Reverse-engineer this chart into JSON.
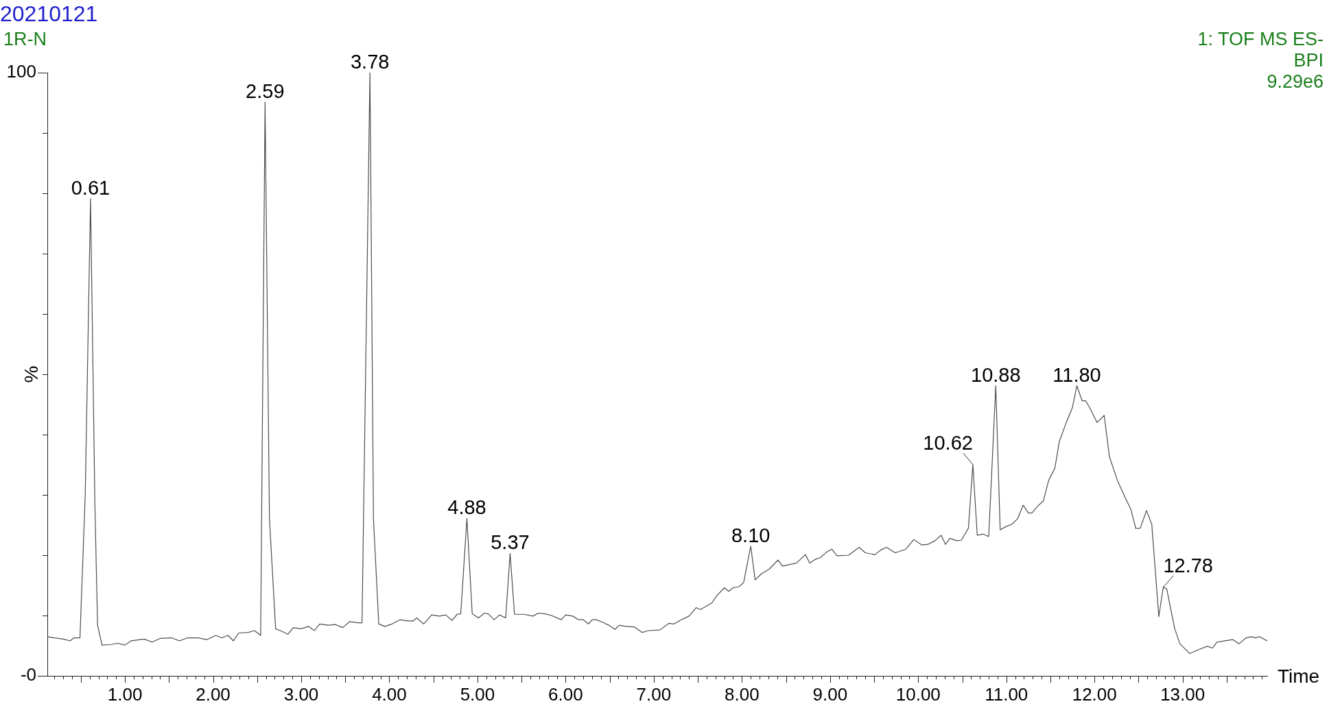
{
  "chart_data": {
    "type": "line",
    "title": "20210121",
    "subtitle": "1R-N",
    "xlabel": "Time",
    "ylabel": "%",
    "annotations": [
      "1: TOF MS ES-",
      "BPI",
      "9.29e6",
      {
        "text": "0.61",
        "x": 0.61,
        "y": 79.1
      },
      {
        "text": "2.59",
        "x": 2.59,
        "y": 95.1
      },
      {
        "text": "3.78",
        "x": 3.78,
        "y": 100
      },
      {
        "text": "4.88",
        "x": 4.88,
        "y": 26.1
      },
      {
        "text": "5.37",
        "x": 5.37,
        "y": 20.3
      },
      {
        "text": "8.10",
        "x": 8.1,
        "y": 21.5
      },
      {
        "text": "10.62",
        "x": 10.62,
        "y": 35.0
      },
      {
        "text": "10.88",
        "x": 10.88,
        "y": 48.1
      },
      {
        "text": "11.80",
        "x": 11.8,
        "y": 48.1
      },
      {
        "text": "12.78",
        "x": 12.78,
        "y": 14.7
      }
    ],
    "x": [
      0.12,
      0.2,
      0.3,
      0.38,
      0.42,
      0.49,
      0.55,
      0.61,
      0.66,
      0.69,
      0.74,
      0.84,
      0.92,
      1.0,
      1.07,
      1.22,
      1.31,
      1.4,
      1.53,
      1.62,
      1.71,
      1.83,
      1.93,
      2.03,
      2.1,
      2.17,
      2.23,
      2.29,
      2.4,
      2.47,
      2.54,
      2.59,
      2.64,
      2.71,
      2.76,
      2.85,
      2.91,
      3.0,
      3.08,
      3.15,
      3.21,
      3.31,
      3.39,
      3.47,
      3.55,
      3.65,
      3.69,
      3.78,
      3.82,
      3.88,
      3.95,
      4.03,
      4.12,
      4.21,
      4.27,
      4.31,
      4.39,
      4.48,
      4.57,
      4.64,
      4.71,
      4.77,
      4.81,
      4.88,
      4.94,
      5.01,
      5.08,
      5.12,
      5.19,
      5.25,
      5.32,
      5.37,
      5.42,
      5.53,
      5.63,
      5.69,
      5.76,
      5.84,
      5.95,
      6.0,
      6.08,
      6.15,
      6.2,
      6.26,
      6.3,
      6.35,
      6.43,
      6.49,
      6.56,
      6.61,
      6.68,
      6.78,
      6.87,
      6.94,
      7.07,
      7.17,
      7.23,
      7.3,
      7.4,
      7.48,
      7.53,
      7.66,
      7.71,
      7.8,
      7.85,
      7.9,
      7.97,
      8.02,
      8.1,
      8.15,
      8.22,
      8.31,
      8.41,
      8.46,
      8.62,
      8.72,
      8.77,
      8.83,
      8.89,
      8.96,
      9.02,
      9.08,
      9.21,
      9.33,
      9.4,
      9.51,
      9.58,
      9.64,
      9.74,
      9.86,
      9.95,
      10.04,
      10.11,
      10.19,
      10.26,
      10.31,
      10.36,
      10.44,
      10.49,
      10.57,
      10.62,
      10.67,
      10.74,
      10.8,
      10.88,
      10.93,
      10.99,
      11.07,
      11.13,
      11.19,
      11.25,
      11.29,
      11.36,
      11.42,
      11.48,
      11.55,
      11.6,
      11.68,
      11.75,
      11.8,
      11.86,
      11.9,
      11.94,
      12.03,
      12.11,
      12.17,
      12.26,
      12.35,
      12.41,
      12.47,
      12.52,
      12.59,
      12.65,
      12.73,
      12.78,
      12.82,
      12.91,
      12.97,
      13.08,
      13.19,
      13.28,
      13.34,
      13.39,
      13.48,
      13.57,
      13.64,
      13.72,
      13.78,
      13.83,
      13.87,
      13.96
    ],
    "values": [
      6.5,
      6.3,
      6.1,
      5.8,
      6.3,
      6.3,
      30,
      79.1,
      28,
      8.4,
      5.1,
      5.2,
      5.4,
      5.1,
      5.8,
      6.1,
      5.6,
      6.2,
      6.3,
      5.8,
      6.3,
      6.3,
      6.0,
      6.7,
      6.3,
      6.7,
      5.8,
      7.1,
      7.2,
      7.5,
      6.7,
      95.1,
      26,
      7.8,
      7.5,
      6.9,
      8.0,
      7.8,
      8.2,
      7.5,
      8.6,
      8.4,
      8.5,
      8.0,
      9.0,
      8.8,
      8.8,
      100,
      26,
      8.6,
      8.2,
      8.6,
      9.3,
      9.1,
      9.1,
      9.6,
      8.6,
      10.1,
      9.9,
      10.1,
      9.2,
      10.2,
      10.3,
      26.1,
      10.3,
      9.6,
      10.4,
      10.3,
      9.3,
      10.1,
      9.6,
      20.3,
      10.2,
      10.2,
      9.9,
      10.4,
      10.3,
      10.0,
      9.3,
      10.1,
      9.9,
      9.3,
      9.3,
      8.6,
      9.3,
      9.3,
      8.8,
      8.4,
      7.7,
      8.4,
      8.2,
      8.1,
      7.2,
      7.5,
      7.6,
      8.7,
      8.6,
      9.2,
      9.9,
      11.3,
      11.0,
      12.1,
      13.2,
      14.6,
      14.0,
      14.6,
      14.8,
      15.5,
      21.5,
      15.9,
      16.9,
      17.7,
      19.2,
      18.2,
      18.7,
      20.1,
      18.7,
      19.3,
      19.6,
      20.5,
      21.0,
      19.9,
      20.0,
      21.3,
      20.4,
      20.1,
      20.9,
      21.3,
      20.4,
      21.0,
      22.6,
      21.7,
      21.8,
      22.4,
      23.3,
      21.8,
      22.8,
      22.4,
      22.5,
      24.5,
      35.0,
      23.3,
      23.5,
      23.1,
      48.1,
      24.2,
      24.7,
      25.2,
      26.1,
      28.3,
      27.0,
      27.0,
      28.2,
      29.0,
      32.4,
      34.4,
      38.8,
      42.0,
      44.5,
      48.1,
      45.6,
      45.6,
      44.6,
      42.0,
      43.2,
      36.3,
      32.4,
      29.5,
      27.7,
      24.4,
      24.5,
      27.4,
      25.1,
      9.8,
      14.7,
      14.4,
      7.8,
      5.3,
      3.7,
      4.4,
      4.9,
      4.6,
      5.6,
      5.8,
      6.0,
      5.3,
      6.3,
      6.5,
      6.3,
      6.5,
      5.8
    ],
    "color": "#4d4d4d",
    "marker": "none",
    "line_style": "solid",
    "xlim": [
      0.12,
      13.96
    ],
    "ylim": [
      0,
      100
    ],
    "xticks": [
      {
        "value": 0.2,
        "label": null
      },
      {
        "value": 0.3,
        "label": null
      },
      {
        "value": 0.4,
        "label": null
      },
      {
        "value": 0.5,
        "label": null
      },
      {
        "value": 0.6,
        "label": null
      },
      {
        "value": 0.7,
        "label": null
      },
      {
        "value": 0.8,
        "label": null
      },
      {
        "value": 0.9,
        "label": null
      },
      {
        "value": 1,
        "label": "1.00"
      },
      {
        "value": 1.1,
        "label": null
      },
      {
        "value": 1.2,
        "label": null
      },
      {
        "value": 1.3,
        "label": null
      },
      {
        "value": 1.4,
        "label": null
      },
      {
        "value": 1.5,
        "label": null
      },
      {
        "value": 1.6,
        "label": null
      },
      {
        "value": 1.7,
        "label": null
      },
      {
        "value": 1.8,
        "label": null
      },
      {
        "value": 1.9,
        "label": null
      },
      {
        "value": 2,
        "label": "2.00"
      },
      {
        "value": 2.1,
        "label": null
      },
      {
        "value": 2.2,
        "label": null
      },
      {
        "value": 2.3,
        "label": null
      },
      {
        "value": 2.4,
        "label": null
      },
      {
        "value": 2.5,
        "label": null
      },
      {
        "value": 2.6,
        "label": null
      },
      {
        "value": 2.7,
        "label": null
      },
      {
        "value": 2.8,
        "label": null
      },
      {
        "value": 2.9,
        "label": null
      },
      {
        "value": 3,
        "label": "3.00"
      },
      {
        "value": 3.1,
        "label": null
      },
      {
        "value": 3.2,
        "label": null
      },
      {
        "value": 3.3,
        "label": null
      },
      {
        "value": 3.4,
        "label": null
      },
      {
        "value": 3.5,
        "label": null
      },
      {
        "value": 3.6,
        "label": null
      },
      {
        "value": 3.7,
        "label": null
      },
      {
        "value": 3.8,
        "label": null
      },
      {
        "value": 3.9,
        "label": null
      },
      {
        "value": 4,
        "label": "4.00"
      },
      {
        "value": 4.1,
        "label": null
      },
      {
        "value": 4.2,
        "label": null
      },
      {
        "value": 4.3,
        "label": null
      },
      {
        "value": 4.4,
        "label": null
      },
      {
        "value": 4.5,
        "label": null
      },
      {
        "value": 4.6,
        "label": null
      },
      {
        "value": 4.7,
        "label": null
      },
      {
        "value": 4.8,
        "label": null
      },
      {
        "value": 4.9,
        "label": null
      },
      {
        "value": 5,
        "label": "5.00"
      },
      {
        "value": 5.1,
        "label": null
      },
      {
        "value": 5.2,
        "label": null
      },
      {
        "value": 5.3,
        "label": null
      },
      {
        "value": 5.4,
        "label": null
      },
      {
        "value": 5.5,
        "label": null
      },
      {
        "value": 5.6,
        "label": null
      },
      {
        "value": 5.7,
        "label": null
      },
      {
        "value": 5.8,
        "label": null
      },
      {
        "value": 5.9,
        "label": null
      },
      {
        "value": 6,
        "label": "6.00"
      },
      {
        "value": 6.1,
        "label": null
      },
      {
        "value": 6.2,
        "label": null
      },
      {
        "value": 6.3,
        "label": null
      },
      {
        "value": 6.4,
        "label": null
      },
      {
        "value": 6.5,
        "label": null
      },
      {
        "value": 6.6,
        "label": null
      },
      {
        "value": 6.7,
        "label": null
      },
      {
        "value": 6.8,
        "label": null
      },
      {
        "value": 6.9,
        "label": null
      },
      {
        "value": 7,
        "label": "7.00"
      },
      {
        "value": 7.1,
        "label": null
      },
      {
        "value": 7.2,
        "label": null
      },
      {
        "value": 7.3,
        "label": null
      },
      {
        "value": 7.4,
        "label": null
      },
      {
        "value": 7.5,
        "label": null
      },
      {
        "value": 7.6,
        "label": null
      },
      {
        "value": 7.7,
        "label": null
      },
      {
        "value": 7.8,
        "label": null
      },
      {
        "value": 7.9,
        "label": null
      },
      {
        "value": 8,
        "label": "8.00"
      },
      {
        "value": 8.1,
        "label": null
      },
      {
        "value": 8.2,
        "label": null
      },
      {
        "value": 8.3,
        "label": null
      },
      {
        "value": 8.4,
        "label": null
      },
      {
        "value": 8.5,
        "label": null
      },
      {
        "value": 8.6,
        "label": null
      },
      {
        "value": 8.7,
        "label": null
      },
      {
        "value": 8.8,
        "label": null
      },
      {
        "value": 8.9,
        "label": null
      },
      {
        "value": 9,
        "label": "9.00"
      },
      {
        "value": 9.1,
        "label": null
      },
      {
        "value": 9.2,
        "label": null
      },
      {
        "value": 9.3,
        "label": null
      },
      {
        "value": 9.4,
        "label": null
      },
      {
        "value": 9.5,
        "label": null
      },
      {
        "value": 9.6,
        "label": null
      },
      {
        "value": 9.7,
        "label": null
      },
      {
        "value": 9.8,
        "label": null
      },
      {
        "value": 9.9,
        "label": null
      },
      {
        "value": 10,
        "label": "10.00"
      },
      {
        "value": 10.1,
        "label": null
      },
      {
        "value": 10.2,
        "label": null
      },
      {
        "value": 10.3,
        "label": null
      },
      {
        "value": 10.4,
        "label": null
      },
      {
        "value": 10.5,
        "label": null
      },
      {
        "value": 10.6,
        "label": null
      },
      {
        "value": 10.7,
        "label": null
      },
      {
        "value": 10.8,
        "label": null
      },
      {
        "value": 10.9,
        "label": null
      },
      {
        "value": 11,
        "label": "11.00"
      },
      {
        "value": 11.1,
        "label": null
      },
      {
        "value": 11.2,
        "label": null
      },
      {
        "value": 11.3,
        "label": null
      },
      {
        "value": 11.4,
        "label": null
      },
      {
        "value": 11.5,
        "label": null
      },
      {
        "value": 11.6,
        "label": null
      },
      {
        "value": 11.7,
        "label": null
      },
      {
        "value": 11.8,
        "label": null
      },
      {
        "value": 11.9,
        "label": null
      },
      {
        "value": 12,
        "label": "12.00"
      },
      {
        "value": 12.1,
        "label": null
      },
      {
        "value": 12.2,
        "label": null
      },
      {
        "value": 12.3,
        "label": null
      },
      {
        "value": 12.4,
        "label": null
      },
      {
        "value": 12.5,
        "label": null
      },
      {
        "value": 12.6,
        "label": null
      },
      {
        "value": 12.7,
        "label": null
      },
      {
        "value": 12.8,
        "label": null
      },
      {
        "value": 12.9,
        "label": null
      },
      {
        "value": 13,
        "label": "13.00"
      },
      {
        "value": 13.1,
        "label": null
      },
      {
        "value": 13.2,
        "label": null
      },
      {
        "value": 13.3,
        "label": null
      },
      {
        "value": 13.4,
        "label": null
      },
      {
        "value": 13.5,
        "label": null
      },
      {
        "value": 13.6,
        "label": null
      },
      {
        "value": 13.7,
        "label": null
      },
      {
        "value": 13.8,
        "label": null
      },
      {
        "value": 13.9,
        "label": null
      }
    ],
    "yticks": [
      {
        "value": 0,
        "label": "-0"
      },
      {
        "value": 10,
        "label": null
      },
      {
        "value": 20,
        "label": null
      },
      {
        "value": 30,
        "label": null
      },
      {
        "value": 40,
        "label": null
      },
      {
        "value": 50,
        "label": null
      },
      {
        "value": 60,
        "label": null
      },
      {
        "value": 70,
        "label": null
      },
      {
        "value": 80,
        "label": null
      },
      {
        "value": 90,
        "label": null
      },
      100
    ]
  }
}
